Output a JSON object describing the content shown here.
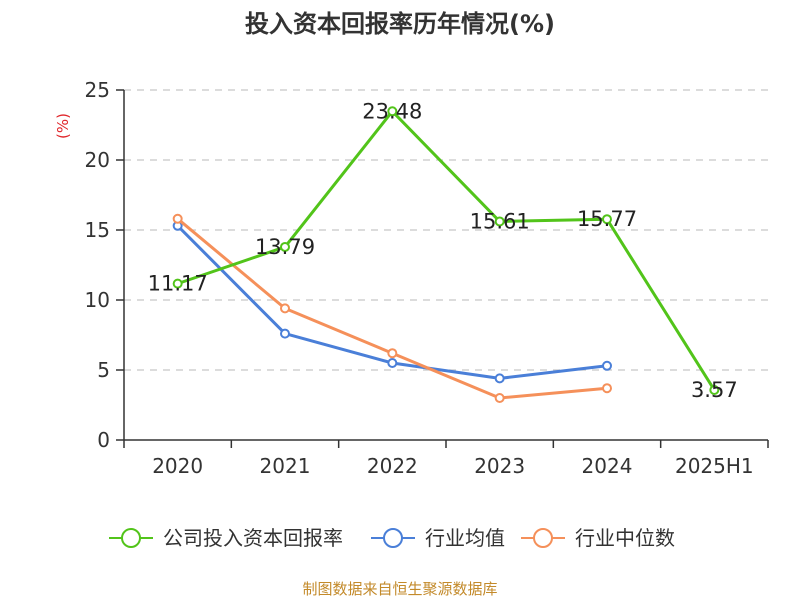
{
  "chart_data": {
    "type": "line",
    "title": "投入资本回报率历年情况(%)",
    "ylabel": "(%)",
    "categories": [
      "2020",
      "2021",
      "2022",
      "2023",
      "2024",
      "2025H1"
    ],
    "ylim": [
      0,
      25
    ],
    "yticks": [
      "0",
      "5",
      "10",
      "15",
      "20",
      "25"
    ],
    "grid": true,
    "legend_position": "bottom",
    "series": [
      {
        "name": "公司投入资本回报率",
        "values": [
          11.17,
          13.79,
          23.48,
          15.61,
          15.77,
          3.57
        ],
        "labels": [
          "11.17",
          "13.79",
          "23.48",
          "15.61",
          "15.77",
          "3.57"
        ],
        "color": "#52c41a"
      },
      {
        "name": "行业均值",
        "values": [
          15.3,
          7.6,
          5.5,
          4.4,
          5.3,
          null
        ],
        "color": "#4a7fd8"
      },
      {
        "name": "行业中位数",
        "values": [
          15.8,
          9.4,
          6.2,
          3.0,
          3.7,
          null
        ],
        "color": "#f5905a"
      }
    ],
    "source": "制图数据来自恒生聚源数据库"
  }
}
